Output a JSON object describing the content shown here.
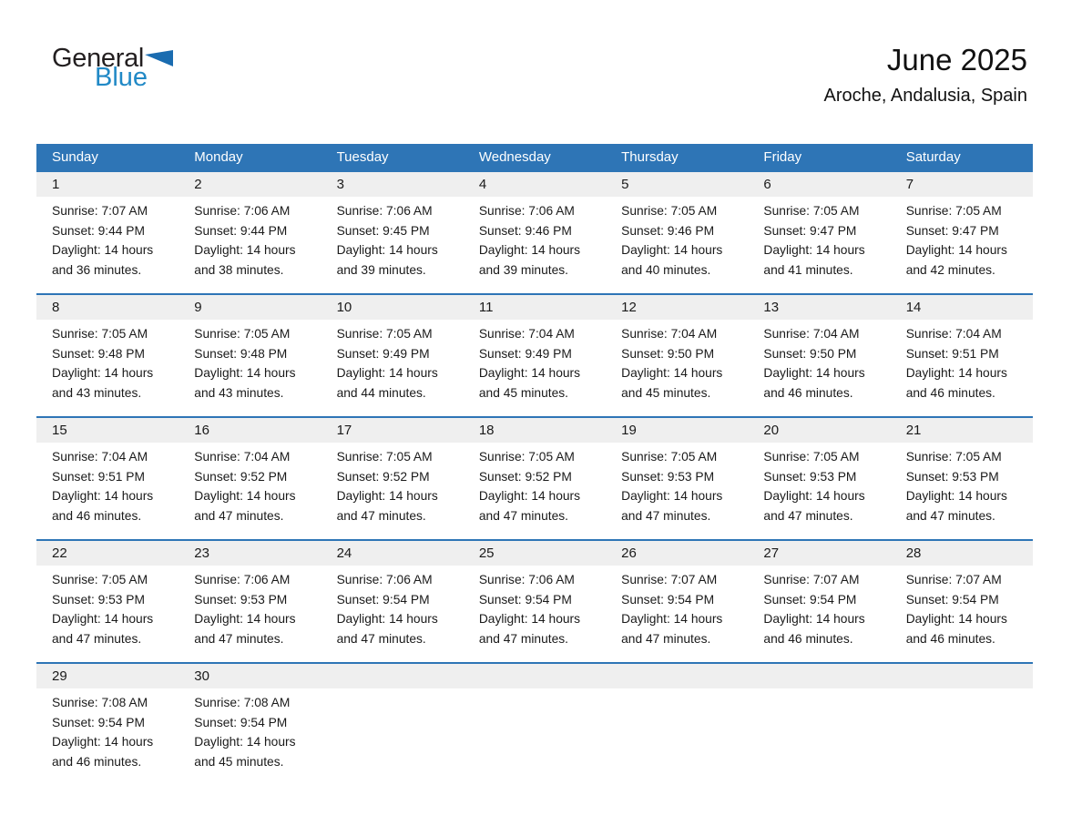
{
  "logo": {
    "line1": "General",
    "line2": "Blue"
  },
  "title": "June 2025",
  "location": "Aroche, Andalusia, Spain",
  "weekday_headers": [
    "Sunday",
    "Monday",
    "Tuesday",
    "Wednesday",
    "Thursday",
    "Friday",
    "Saturday"
  ],
  "colors": {
    "header_bg": "#2e75b6",
    "week_divider": "#2e75b6",
    "day_strip_bg": "#efefef",
    "logo_black": "#231f20",
    "logo_blue": "#2189c6",
    "logo_triangle_blue": "#1a6cb0",
    "text": "#1a1a1a"
  },
  "weeks": [
    [
      {
        "day": 1,
        "sunrise": "Sunrise: 7:07 AM",
        "sunset": "Sunset: 9:44 PM",
        "daylight1": "Daylight: 14 hours",
        "daylight2": "and 36 minutes."
      },
      {
        "day": 2,
        "sunrise": "Sunrise: 7:06 AM",
        "sunset": "Sunset: 9:44 PM",
        "daylight1": "Daylight: 14 hours",
        "daylight2": "and 38 minutes."
      },
      {
        "day": 3,
        "sunrise": "Sunrise: 7:06 AM",
        "sunset": "Sunset: 9:45 PM",
        "daylight1": "Daylight: 14 hours",
        "daylight2": "and 39 minutes."
      },
      {
        "day": 4,
        "sunrise": "Sunrise: 7:06 AM",
        "sunset": "Sunset: 9:46 PM",
        "daylight1": "Daylight: 14 hours",
        "daylight2": "and 39 minutes."
      },
      {
        "day": 5,
        "sunrise": "Sunrise: 7:05 AM",
        "sunset": "Sunset: 9:46 PM",
        "daylight1": "Daylight: 14 hours",
        "daylight2": "and 40 minutes."
      },
      {
        "day": 6,
        "sunrise": "Sunrise: 7:05 AM",
        "sunset": "Sunset: 9:47 PM",
        "daylight1": "Daylight: 14 hours",
        "daylight2": "and 41 minutes."
      },
      {
        "day": 7,
        "sunrise": "Sunrise: 7:05 AM",
        "sunset": "Sunset: 9:47 PM",
        "daylight1": "Daylight: 14 hours",
        "daylight2": "and 42 minutes."
      }
    ],
    [
      {
        "day": 8,
        "sunrise": "Sunrise: 7:05 AM",
        "sunset": "Sunset: 9:48 PM",
        "daylight1": "Daylight: 14 hours",
        "daylight2": "and 43 minutes."
      },
      {
        "day": 9,
        "sunrise": "Sunrise: 7:05 AM",
        "sunset": "Sunset: 9:48 PM",
        "daylight1": "Daylight: 14 hours",
        "daylight2": "and 43 minutes."
      },
      {
        "day": 10,
        "sunrise": "Sunrise: 7:05 AM",
        "sunset": "Sunset: 9:49 PM",
        "daylight1": "Daylight: 14 hours",
        "daylight2": "and 44 minutes."
      },
      {
        "day": 11,
        "sunrise": "Sunrise: 7:04 AM",
        "sunset": "Sunset: 9:49 PM",
        "daylight1": "Daylight: 14 hours",
        "daylight2": "and 45 minutes."
      },
      {
        "day": 12,
        "sunrise": "Sunrise: 7:04 AM",
        "sunset": "Sunset: 9:50 PM",
        "daylight1": "Daylight: 14 hours",
        "daylight2": "and 45 minutes."
      },
      {
        "day": 13,
        "sunrise": "Sunrise: 7:04 AM",
        "sunset": "Sunset: 9:50 PM",
        "daylight1": "Daylight: 14 hours",
        "daylight2": "and 46 minutes."
      },
      {
        "day": 14,
        "sunrise": "Sunrise: 7:04 AM",
        "sunset": "Sunset: 9:51 PM",
        "daylight1": "Daylight: 14 hours",
        "daylight2": "and 46 minutes."
      }
    ],
    [
      {
        "day": 15,
        "sunrise": "Sunrise: 7:04 AM",
        "sunset": "Sunset: 9:51 PM",
        "daylight1": "Daylight: 14 hours",
        "daylight2": "and 46 minutes."
      },
      {
        "day": 16,
        "sunrise": "Sunrise: 7:04 AM",
        "sunset": "Sunset: 9:52 PM",
        "daylight1": "Daylight: 14 hours",
        "daylight2": "and 47 minutes."
      },
      {
        "day": 17,
        "sunrise": "Sunrise: 7:05 AM",
        "sunset": "Sunset: 9:52 PM",
        "daylight1": "Daylight: 14 hours",
        "daylight2": "and 47 minutes."
      },
      {
        "day": 18,
        "sunrise": "Sunrise: 7:05 AM",
        "sunset": "Sunset: 9:52 PM",
        "daylight1": "Daylight: 14 hours",
        "daylight2": "and 47 minutes."
      },
      {
        "day": 19,
        "sunrise": "Sunrise: 7:05 AM",
        "sunset": "Sunset: 9:53 PM",
        "daylight1": "Daylight: 14 hours",
        "daylight2": "and 47 minutes."
      },
      {
        "day": 20,
        "sunrise": "Sunrise: 7:05 AM",
        "sunset": "Sunset: 9:53 PM",
        "daylight1": "Daylight: 14 hours",
        "daylight2": "and 47 minutes."
      },
      {
        "day": 21,
        "sunrise": "Sunrise: 7:05 AM",
        "sunset": "Sunset: 9:53 PM",
        "daylight1": "Daylight: 14 hours",
        "daylight2": "and 47 minutes."
      }
    ],
    [
      {
        "day": 22,
        "sunrise": "Sunrise: 7:05 AM",
        "sunset": "Sunset: 9:53 PM",
        "daylight1": "Daylight: 14 hours",
        "daylight2": "and 47 minutes."
      },
      {
        "day": 23,
        "sunrise": "Sunrise: 7:06 AM",
        "sunset": "Sunset: 9:53 PM",
        "daylight1": "Daylight: 14 hours",
        "daylight2": "and 47 minutes."
      },
      {
        "day": 24,
        "sunrise": "Sunrise: 7:06 AM",
        "sunset": "Sunset: 9:54 PM",
        "daylight1": "Daylight: 14 hours",
        "daylight2": "and 47 minutes."
      },
      {
        "day": 25,
        "sunrise": "Sunrise: 7:06 AM",
        "sunset": "Sunset: 9:54 PM",
        "daylight1": "Daylight: 14 hours",
        "daylight2": "and 47 minutes."
      },
      {
        "day": 26,
        "sunrise": "Sunrise: 7:07 AM",
        "sunset": "Sunset: 9:54 PM",
        "daylight1": "Daylight: 14 hours",
        "daylight2": "and 47 minutes."
      },
      {
        "day": 27,
        "sunrise": "Sunrise: 7:07 AM",
        "sunset": "Sunset: 9:54 PM",
        "daylight1": "Daylight: 14 hours",
        "daylight2": "and 46 minutes."
      },
      {
        "day": 28,
        "sunrise": "Sunrise: 7:07 AM",
        "sunset": "Sunset: 9:54 PM",
        "daylight1": "Daylight: 14 hours",
        "daylight2": "and 46 minutes."
      }
    ],
    [
      {
        "day": 29,
        "sunrise": "Sunrise: 7:08 AM",
        "sunset": "Sunset: 9:54 PM",
        "daylight1": "Daylight: 14 hours",
        "daylight2": "and 46 minutes."
      },
      {
        "day": 30,
        "sunrise": "Sunrise: 7:08 AM",
        "sunset": "Sunset: 9:54 PM",
        "daylight1": "Daylight: 14 hours",
        "daylight2": "and 45 minutes."
      }
    ]
  ]
}
